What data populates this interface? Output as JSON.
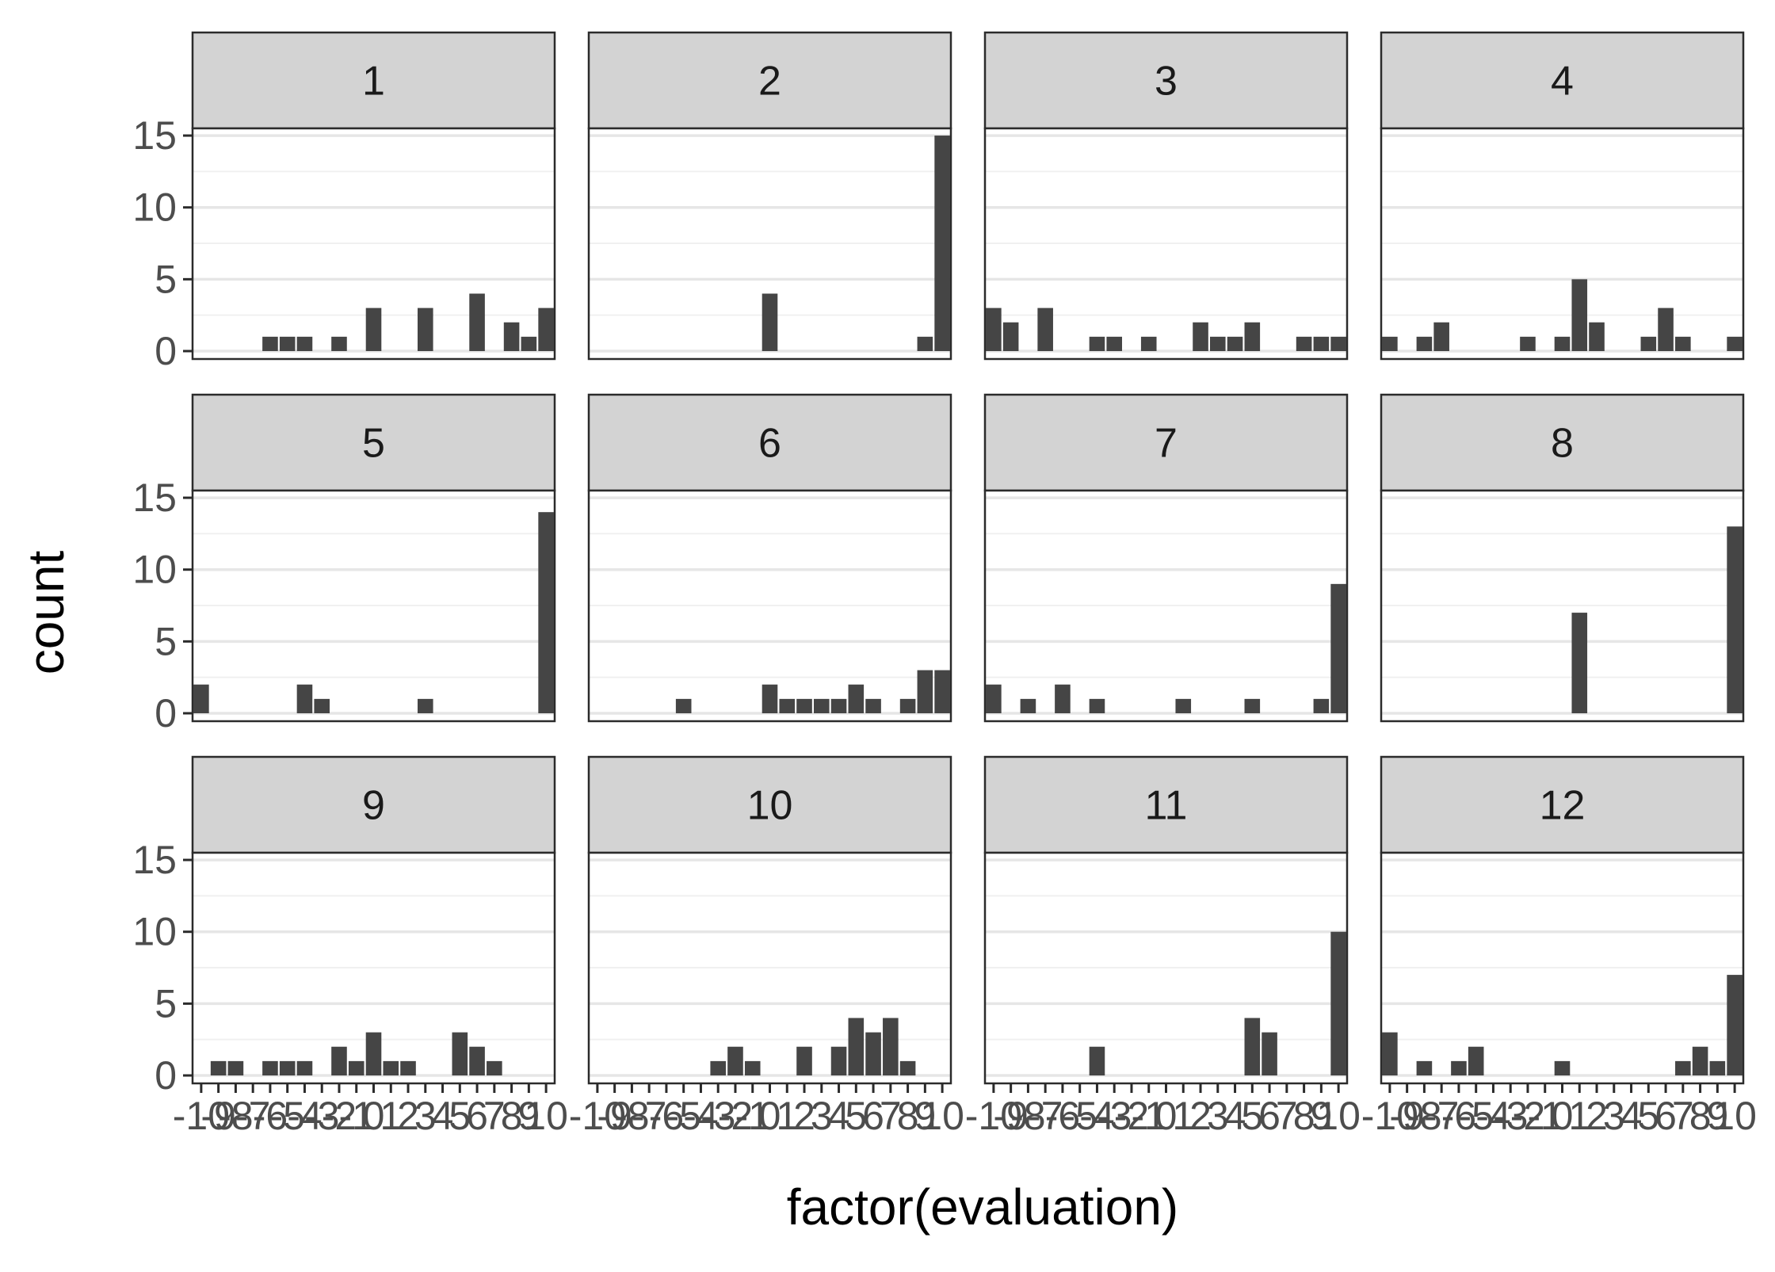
{
  "chart_data": {
    "type": "bar",
    "layout": "facet_wrap",
    "xlabel": "factor(evaluation)",
    "ylabel": "count",
    "categories": [
      "-10",
      "-9",
      "-8",
      "-7",
      "-6",
      "-5",
      "-4",
      "-3",
      "-2",
      "-1",
      "0",
      "1",
      "2",
      "3",
      "4",
      "5",
      "6",
      "7",
      "8",
      "9",
      "10"
    ],
    "yticks": [
      0,
      5,
      10,
      15
    ],
    "ylim": [
      0,
      15.5
    ],
    "grid": true,
    "colors": {
      "bar": "#454545",
      "strip": "#d3d3d3",
      "border": "#2b2b2b",
      "grid_major": "#e6e6e6",
      "grid_minor": "#f0f0f0",
      "tick_text": "#4d4d4d",
      "strip_text": "#1a1a1a",
      "title_text": "#000000"
    },
    "panels": [
      {
        "label": "1",
        "values": [
          0,
          0,
          0,
          0,
          1,
          1,
          1,
          0,
          1,
          0,
          3,
          0,
          0,
          3,
          0,
          0,
          4,
          0,
          2,
          1,
          3
        ]
      },
      {
        "label": "2",
        "values": [
          0,
          0,
          0,
          0,
          0,
          0,
          0,
          0,
          0,
          0,
          4,
          0,
          0,
          0,
          0,
          0,
          0,
          0,
          0,
          1,
          15
        ]
      },
      {
        "label": "3",
        "values": [
          3,
          2,
          0,
          3,
          0,
          0,
          1,
          1,
          0,
          1,
          0,
          0,
          2,
          1,
          1,
          2,
          0,
          0,
          1,
          1,
          1
        ]
      },
      {
        "label": "4",
        "values": [
          1,
          0,
          1,
          2,
          0,
          0,
          0,
          0,
          1,
          0,
          1,
          5,
          2,
          0,
          0,
          1,
          3,
          1,
          0,
          0,
          1
        ]
      },
      {
        "label": "5",
        "values": [
          2,
          0,
          0,
          0,
          0,
          0,
          2,
          1,
          0,
          0,
          0,
          0,
          0,
          1,
          0,
          0,
          0,
          0,
          0,
          0,
          14
        ]
      },
      {
        "label": "6",
        "values": [
          0,
          0,
          0,
          0,
          0,
          1,
          0,
          0,
          0,
          0,
          2,
          1,
          1,
          1,
          1,
          2,
          1,
          0,
          1,
          3,
          3
        ]
      },
      {
        "label": "7",
        "values": [
          2,
          0,
          1,
          0,
          2,
          0,
          1,
          0,
          0,
          0,
          0,
          1,
          0,
          0,
          0,
          1,
          0,
          0,
          0,
          1,
          9
        ]
      },
      {
        "label": "8",
        "values": [
          0,
          0,
          0,
          0,
          0,
          0,
          0,
          0,
          0,
          0,
          0,
          7,
          0,
          0,
          0,
          0,
          0,
          0,
          0,
          0,
          13
        ]
      },
      {
        "label": "9",
        "values": [
          0,
          1,
          1,
          0,
          1,
          1,
          1,
          0,
          2,
          1,
          3,
          1,
          1,
          0,
          0,
          3,
          2,
          1,
          0,
          0,
          0
        ]
      },
      {
        "label": "10",
        "values": [
          0,
          0,
          0,
          0,
          0,
          0,
          0,
          1,
          2,
          1,
          0,
          0,
          2,
          0,
          2,
          4,
          3,
          4,
          1,
          0,
          0
        ]
      },
      {
        "label": "11",
        "values": [
          0,
          0,
          0,
          0,
          0,
          0,
          2,
          0,
          0,
          0,
          0,
          0,
          0,
          0,
          0,
          4,
          3,
          0,
          0,
          0,
          10
        ]
      },
      {
        "label": "12",
        "values": [
          3,
          0,
          1,
          0,
          1,
          2,
          0,
          0,
          0,
          0,
          1,
          0,
          0,
          0,
          0,
          0,
          0,
          1,
          2,
          1,
          7
        ]
      }
    ]
  }
}
